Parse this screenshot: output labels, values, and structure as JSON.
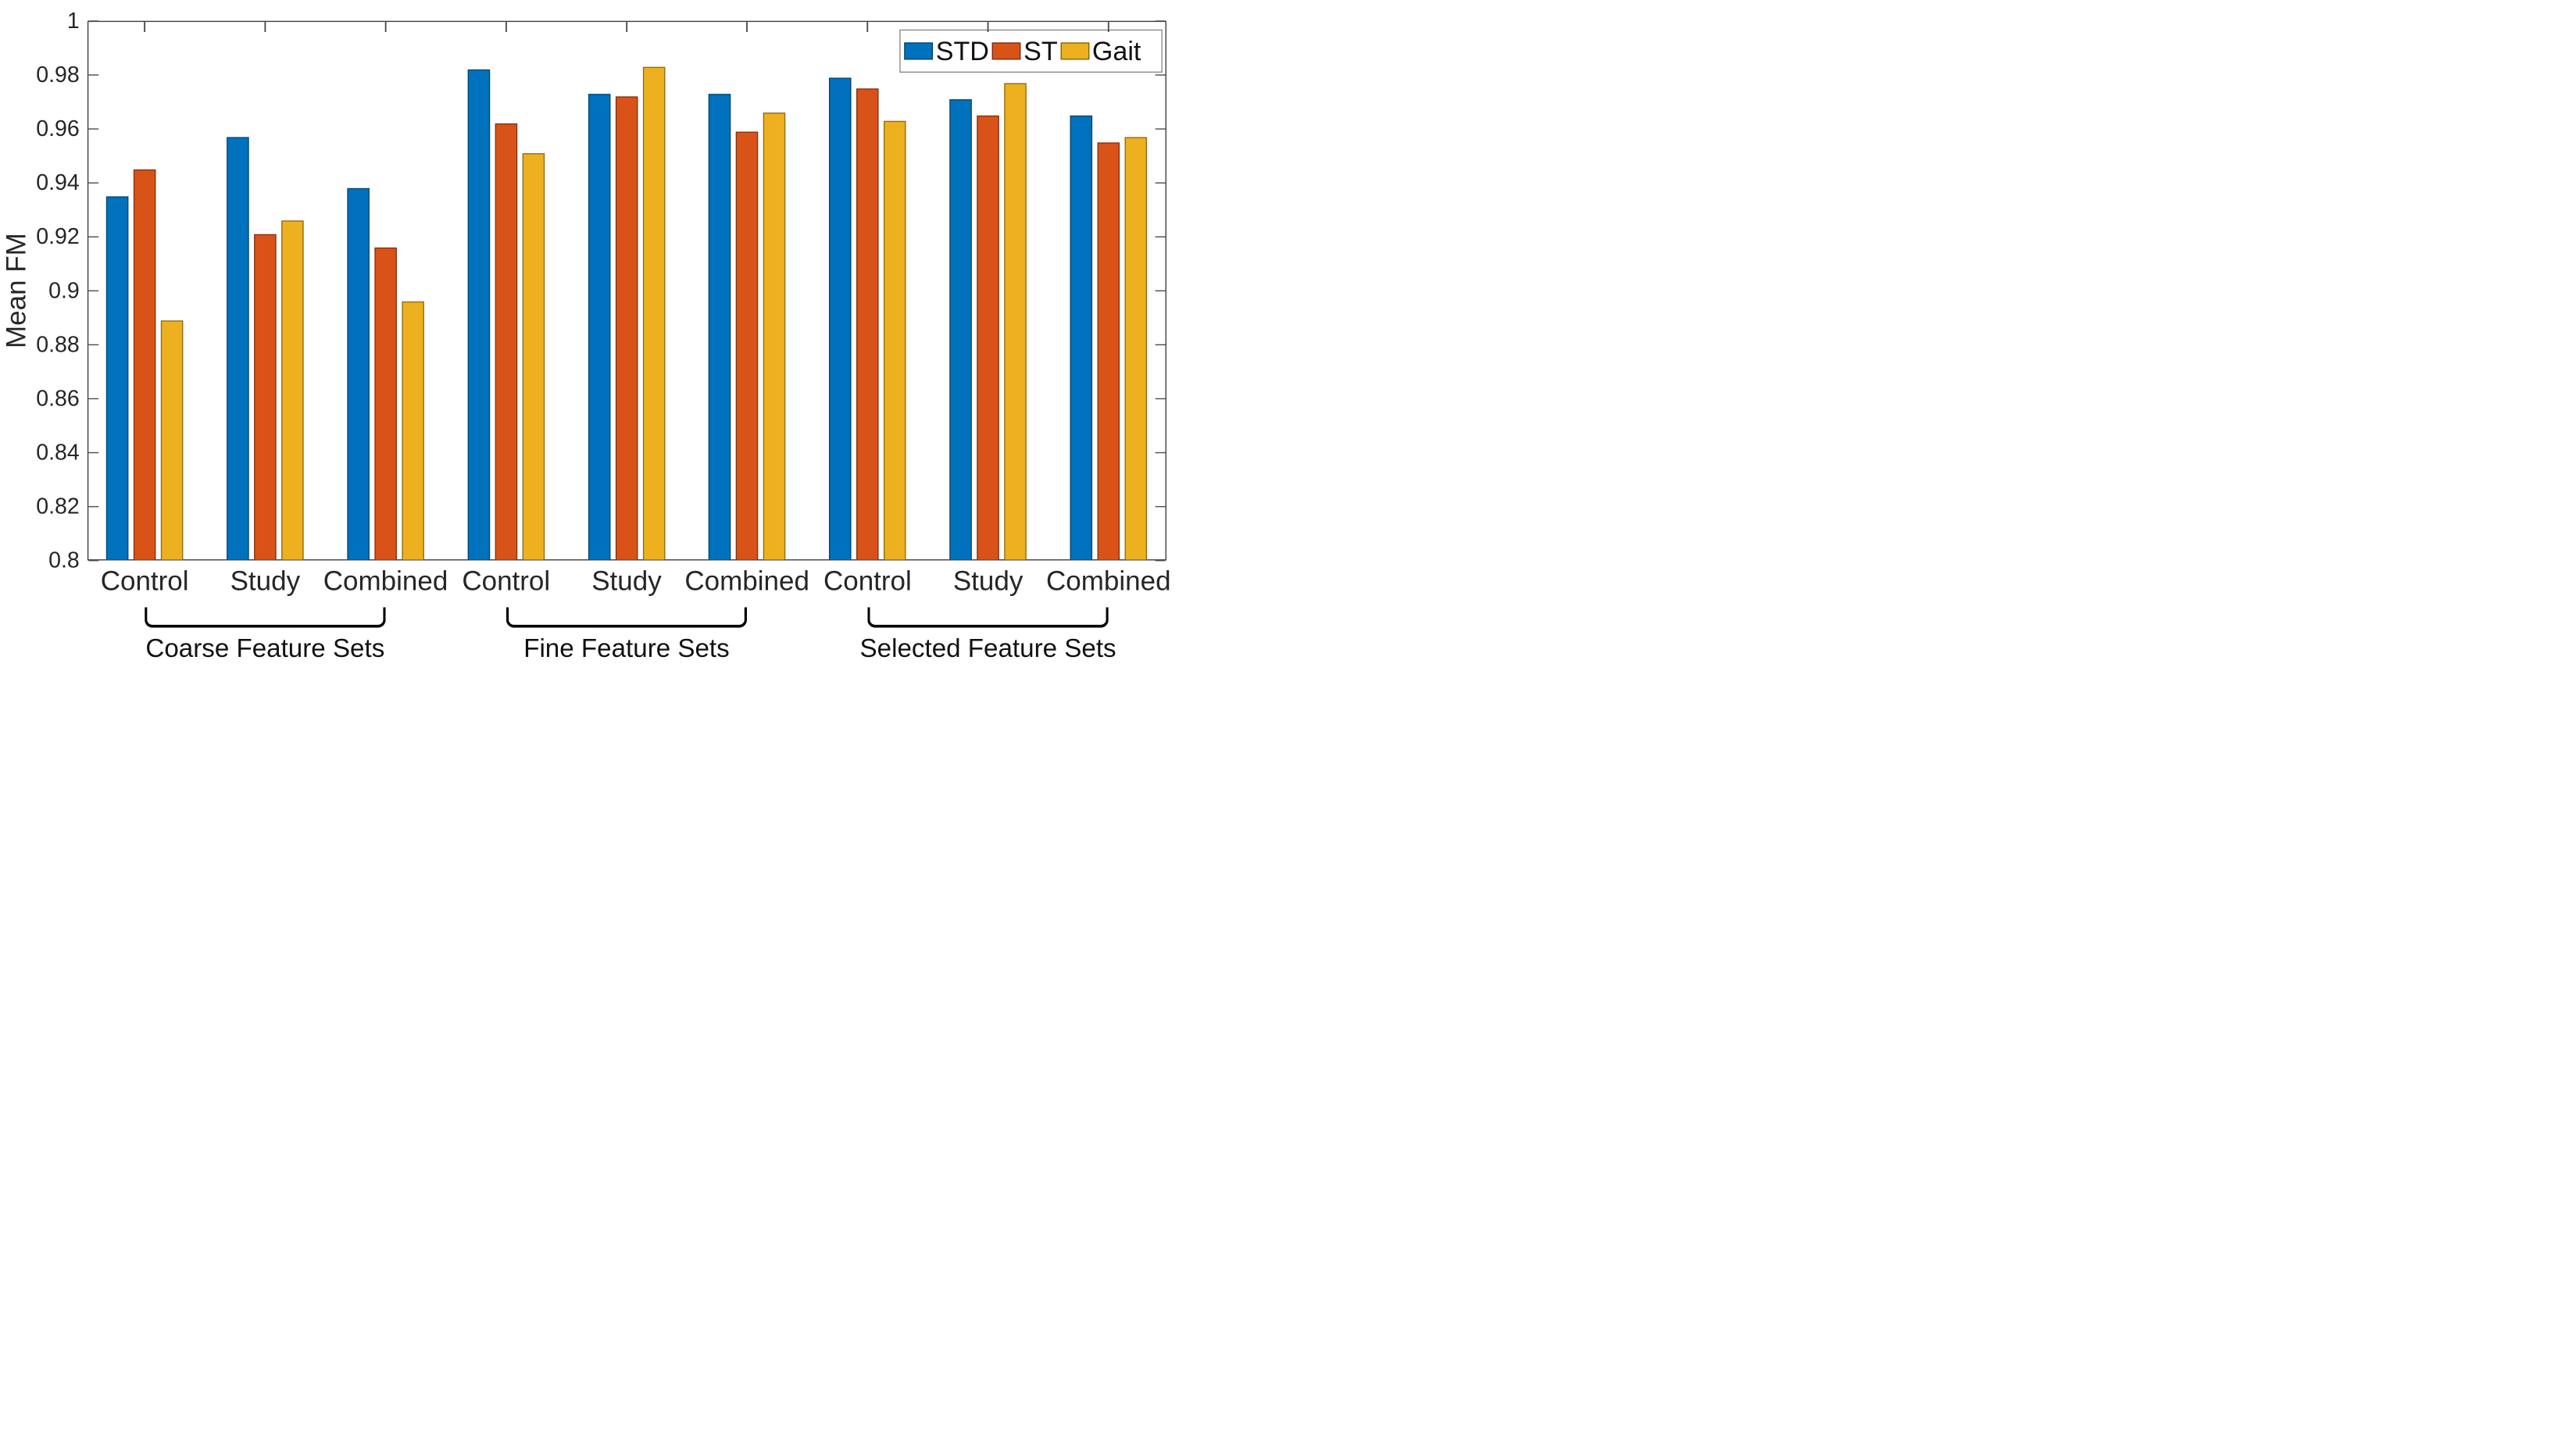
{
  "figure": {
    "background_color": "#ffffff",
    "axis_color": "#3d3d3d",
    "text_color": "#262626"
  },
  "y_axis": {
    "label": "Mean FM",
    "tick_labels_top_to_bottom": [
      "1",
      "0.98",
      "0.96",
      "0.94",
      "0.92",
      "0.9",
      "0.88",
      "0.86",
      "0.84",
      "0.82",
      "0.8"
    ]
  },
  "x_axis": {
    "category_labels": [
      "Control",
      "Study",
      "Combined",
      "Control",
      "Study",
      "Combined",
      "Control",
      "Study",
      "Combined"
    ],
    "set_labels": [
      "Coarse Feature Sets",
      "Fine Feature Sets",
      "Selected Feature Sets"
    ]
  },
  "legend": {
    "position": "top-right",
    "entries": [
      {
        "label": "STD",
        "color": "#0072BD"
      },
      {
        "label": "ST",
        "color": "#D95319"
      },
      {
        "label": "Gait",
        "color": "#EDB120"
      }
    ]
  },
  "chart_data": {
    "type": "bar",
    "title": "",
    "xlabel": "",
    "ylabel": "Mean FM",
    "ylim": [
      0.8,
      1.0
    ],
    "ytick_step": 0.02,
    "grid": false,
    "legend_position": "top-right",
    "group_sets": [
      {
        "name": "Coarse Feature Sets",
        "categories": [
          "Control",
          "Study",
          "Combined"
        ]
      },
      {
        "name": "Fine Feature Sets",
        "categories": [
          "Control",
          "Study",
          "Combined"
        ]
      },
      {
        "name": "Selected Feature Sets",
        "categories": [
          "Control",
          "Study",
          "Combined"
        ]
      }
    ],
    "categories": [
      "Control",
      "Study",
      "Combined",
      "Control",
      "Study",
      "Combined",
      "Control",
      "Study",
      "Combined"
    ],
    "series": [
      {
        "name": "STD",
        "color": "#0072BD",
        "values": [
          0.935,
          0.957,
          0.938,
          0.982,
          0.973,
          0.973,
          0.979,
          0.971,
          0.965
        ]
      },
      {
        "name": "ST",
        "color": "#D95319",
        "values": [
          0.945,
          0.921,
          0.916,
          0.962,
          0.972,
          0.959,
          0.975,
          0.965,
          0.955
        ]
      },
      {
        "name": "Gait",
        "color": "#EDB120",
        "values": [
          0.889,
          0.926,
          0.896,
          0.951,
          0.983,
          0.966,
          0.963,
          0.977,
          0.957
        ]
      }
    ]
  }
}
